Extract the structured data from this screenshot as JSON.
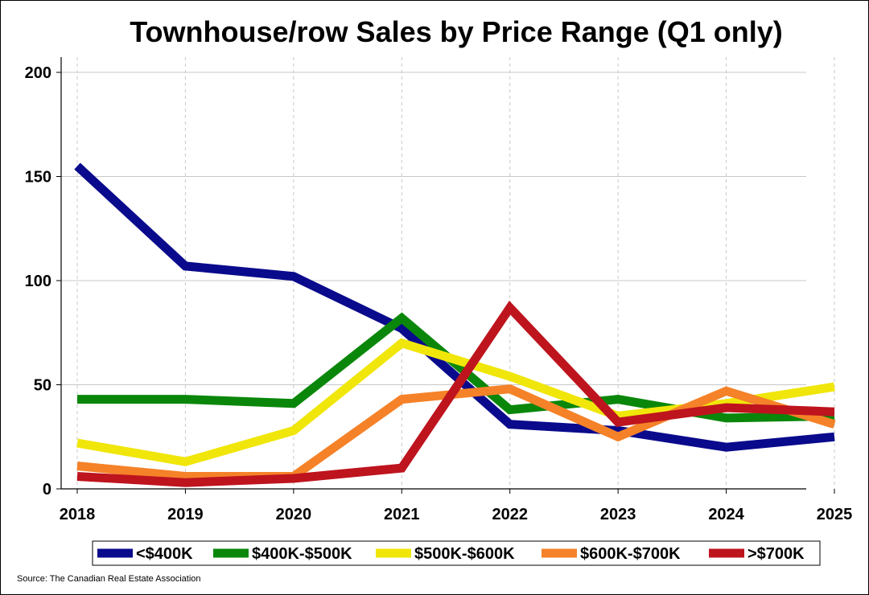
{
  "chart_data": {
    "type": "line",
    "title": "Townhouse/row Sales by Price Range (Q1 only)",
    "x": [
      "2018",
      "2019",
      "2020",
      "2021",
      "2022",
      "2023",
      "2024",
      "2025"
    ],
    "ylim": [
      0,
      200
    ],
    "yticks": [
      0,
      50,
      100,
      150,
      200
    ],
    "grid": true,
    "legend_position": "bottom",
    "series": [
      {
        "name": "<$400K",
        "color": "#0a0a8c",
        "values": [
          155,
          107,
          102,
          77,
          31,
          28,
          20,
          25
        ]
      },
      {
        "name": "$400K-$500K",
        "color": "#0a870a",
        "values": [
          43,
          43,
          41,
          82,
          38,
          43,
          34,
          35
        ]
      },
      {
        "name": "$500K-$600K",
        "color": "#f0e60a",
        "values": [
          22,
          13,
          28,
          70,
          54,
          35,
          41,
          49
        ]
      },
      {
        "name": "$600K-$700K",
        "color": "#f58228",
        "values": [
          11,
          6,
          6,
          43,
          48,
          25,
          47,
          31
        ]
      },
      {
        "name": ">$700K",
        "color": "#be141e",
        "values": [
          6,
          3,
          5,
          10,
          87,
          32,
          39,
          37
        ]
      }
    ],
    "source": "Source: The Canadian Real Estate Association"
  }
}
